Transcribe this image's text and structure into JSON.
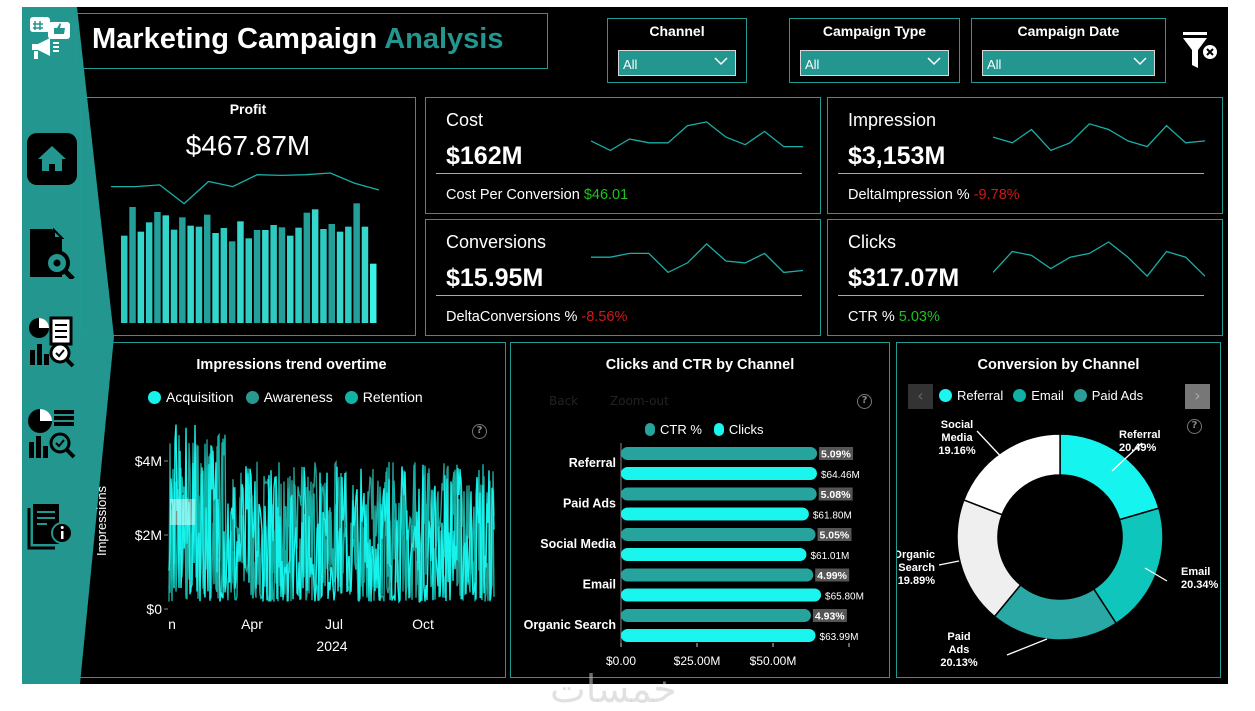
{
  "header": {
    "title_main": "Marketing Campaign",
    "title_accent": "Analysis"
  },
  "filters": [
    {
      "label": "Channel",
      "value": "All"
    },
    {
      "label": "Campaign Type",
      "value": "All"
    },
    {
      "label": "Campaign Date",
      "value": "All"
    }
  ],
  "sidebar": {
    "items": [
      {
        "icon": "home-icon",
        "active": true
      },
      {
        "icon": "document-search-icon"
      },
      {
        "icon": "report-analytics-icon"
      },
      {
        "icon": "chart-inspect-icon"
      },
      {
        "icon": "document-info-icon"
      }
    ]
  },
  "profit": {
    "label": "Profit",
    "value": "$467.87M",
    "trend": [
      0.6,
      0.6,
      0.65,
      0.1,
      0.75,
      0.6,
      0.95,
      0.93,
      0.95,
      1.0,
      0.7,
      0.5
    ],
    "bars": [
      262,
      348,
      274,
      302,
      333,
      323,
      280,
      317,
      292,
      289,
      325,
      270,
      285,
      245,
      305,
      254,
      279,
      279,
      294,
      287,
      262,
      286,
      331,
      341,
      282,
      297,
      274,
      289,
      359,
      289,
      178
    ]
  },
  "kpis": {
    "cost": {
      "label": "Cost",
      "value": "$162M",
      "sub_label": "Cost Per Conversion",
      "sub_value": "$46.01",
      "sub_color": "#1cc41c",
      "trend": [
        0.45,
        0.2,
        0.5,
        0.4,
        0.4,
        0.85,
        0.95,
        0.55,
        0.35,
        0.7,
        0.3,
        0.3
      ]
    },
    "impression": {
      "label": "Impression",
      "value": "$3,153M",
      "sub_label": "DeltaImpression %",
      "sub_value": "-9.78%",
      "sub_color": "#d01818",
      "trend": [
        0.55,
        0.4,
        0.75,
        0.2,
        0.4,
        0.9,
        0.75,
        0.45,
        0.3,
        0.85,
        0.4,
        0.45
      ]
    },
    "conversions": {
      "label": "Conversions",
      "value": "$15.95M",
      "sub_label": "DeltaConversions %",
      "sub_value": "-8.56%",
      "sub_color": "#d01818",
      "trend": [
        0.6,
        0.6,
        0.7,
        0.7,
        0.2,
        0.45,
        0.95,
        0.5,
        0.45,
        0.7,
        0.2,
        0.25
      ]
    },
    "clicks": {
      "label": "Clicks",
      "value": "$317.07M",
      "sub_label": "CTR %",
      "sub_value": "5.03%",
      "sub_color": "#1cc41c",
      "trend": [
        0.2,
        0.75,
        0.65,
        0.3,
        0.6,
        0.7,
        1.0,
        0.6,
        0.1,
        0.75,
        0.6,
        0.1
      ]
    }
  },
  "chart_data": [
    {
      "type": "line",
      "title": "Impressions trend overtime",
      "ylabel": "Impressions",
      "xlabel": "2024",
      "x_ticks": [
        "n",
        "Apr",
        "Jul",
        "Oct"
      ],
      "y_ticks": [
        "$0",
        "$2M",
        "$4M"
      ],
      "ylim": [
        0,
        5000000
      ],
      "legend_position": "top",
      "series": [
        {
          "name": "Acquisition",
          "color": "#16f2ec"
        },
        {
          "name": "Awareness",
          "color": "#27998f"
        },
        {
          "name": "Retention",
          "color": "#12b3a6"
        }
      ]
    },
    {
      "type": "bar",
      "title": "Clicks and CTR by Channel",
      "orientation": "horizontal",
      "drill_buttons": [
        "Back",
        "Zoom-out"
      ],
      "categories": [
        "Referral",
        "Paid Ads",
        "Social Media",
        "Email",
        "Organic Search"
      ],
      "series": [
        {
          "name": "CTR %",
          "color": "#27a39e",
          "values": [
            5.09,
            5.08,
            5.05,
            4.99,
            4.93
          ],
          "labels": [
            "5.09%",
            "5.08%",
            "5.05%",
            "4.99%",
            "4.93%"
          ]
        },
        {
          "name": "Clicks",
          "color": "#1af5ee",
          "values": [
            64.46,
            61.8,
            61.01,
            65.8,
            63.99
          ],
          "labels": [
            "$64.46M",
            "$61.80M",
            "$61.01M",
            "$65.80M",
            "$63.99M"
          ]
        }
      ],
      "x_ticks": [
        "$0.00",
        "$25.00M",
        "$50.00M"
      ],
      "xlim": [
        0,
        75
      ],
      "legend_position": "top"
    },
    {
      "type": "pie",
      "title": "Conversion by Channel",
      "donut": true,
      "legend": [
        "Referral",
        "Email",
        "Paid Ads"
      ],
      "legend_colors": [
        "#1ff5f0",
        "#0fb0a5",
        "#2a9d98"
      ],
      "slices": [
        {
          "label": "Referral",
          "value": 20.49,
          "text": "20.49%",
          "color": "#16f4f0"
        },
        {
          "label": "Email",
          "value": 20.34,
          "text": "20.34%",
          "color": "#0fc6bc"
        },
        {
          "label": "Paid Ads",
          "value": 20.13,
          "text": "20.13%",
          "color": "#2aa8a5"
        },
        {
          "label": "Organic Search",
          "value": 19.89,
          "text": "19.89%",
          "color": "#efefef"
        },
        {
          "label": "Social Media",
          "value": 19.16,
          "text": "19.16%",
          "color": "#ffffff"
        }
      ]
    }
  ],
  "watermark": "خمسات"
}
